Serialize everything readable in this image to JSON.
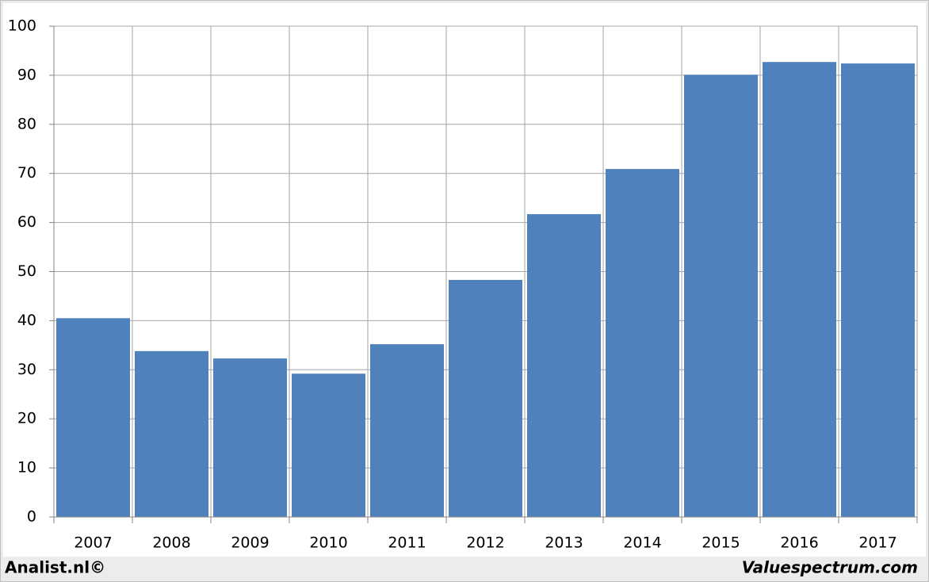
{
  "chart_data": {
    "type": "bar",
    "categories": [
      "2007",
      "2008",
      "2009",
      "2010",
      "2011",
      "2012",
      "2013",
      "2014",
      "2015",
      "2016",
      "2017"
    ],
    "values": [
      40.5,
      33.8,
      32.3,
      29.2,
      35.2,
      48.3,
      61.7,
      70.9,
      90.1,
      92.7,
      92.4
    ],
    "color": "#4f81bd",
    "ylim": [
      0,
      100
    ],
    "yticks": [
      0,
      10,
      20,
      30,
      40,
      50,
      60,
      70,
      80,
      90,
      100
    ],
    "grid": true,
    "source_left": "Analist.nl©",
    "source_right": "Valuespectrum.com"
  }
}
